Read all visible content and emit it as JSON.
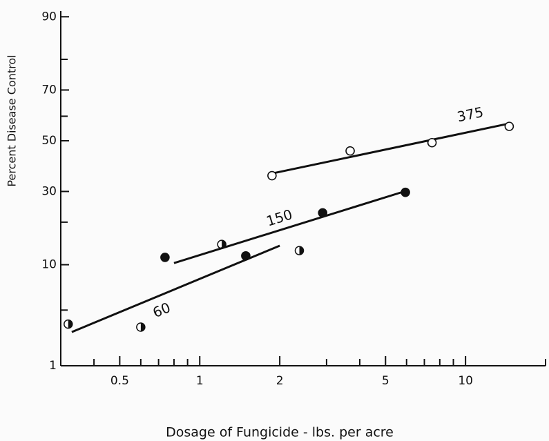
{
  "chart_data": {
    "type": "scatter",
    "xlabel": "Dosage of Fungicide - lbs. per acre",
    "ylabel": "Percent Disease Control",
    "xscale": "log",
    "yscale": "probit",
    "xlim": [
      0.3,
      20
    ],
    "ylim": [
      1,
      91
    ],
    "xticks": [
      0.5,
      1,
      2,
      5,
      10
    ],
    "xminor": [
      0.4,
      0.6,
      0.7,
      0.8,
      0.9,
      3,
      4,
      6,
      7,
      8,
      9,
      20
    ],
    "yticks": [
      1,
      10,
      30,
      50,
      70,
      90
    ],
    "yminor": [
      4,
      20,
      60,
      80
    ],
    "series": [
      {
        "marker": "half",
        "color": "#111",
        "x": [
          0.32,
          0.6,
          1.21,
          2.37
        ],
        "values": [
          2.9,
          2.7,
          14.2,
          12.8
        ]
      },
      {
        "name": "60",
        "marker": "filled",
        "color": "#111",
        "x": [],
        "values": [],
        "fit": {
          "x": [
            0.33,
            2.0
          ],
          "values": [
            2.4,
            13.9
          ]
        }
      },
      {
        "name": "150",
        "marker": "filled",
        "color": "#111",
        "x": [
          0.74,
          1.49,
          2.9,
          5.94
        ],
        "values": [
          11.4,
          11.7,
          22.8,
          29.7
        ],
        "fit": {
          "x": [
            0.8,
            5.97
          ],
          "values": [
            10.3,
            30.2
          ]
        }
      },
      {
        "name": "375",
        "marker": "open",
        "color": "#111",
        "x": [
          1.87,
          3.68,
          7.48,
          14.6
        ],
        "values": [
          35.9,
          45.8,
          49.2,
          55.9
        ],
        "fit": {
          "x": [
            1.9,
            14.5
          ],
          "values": [
            36.9,
            57
          ]
        }
      }
    ]
  }
}
